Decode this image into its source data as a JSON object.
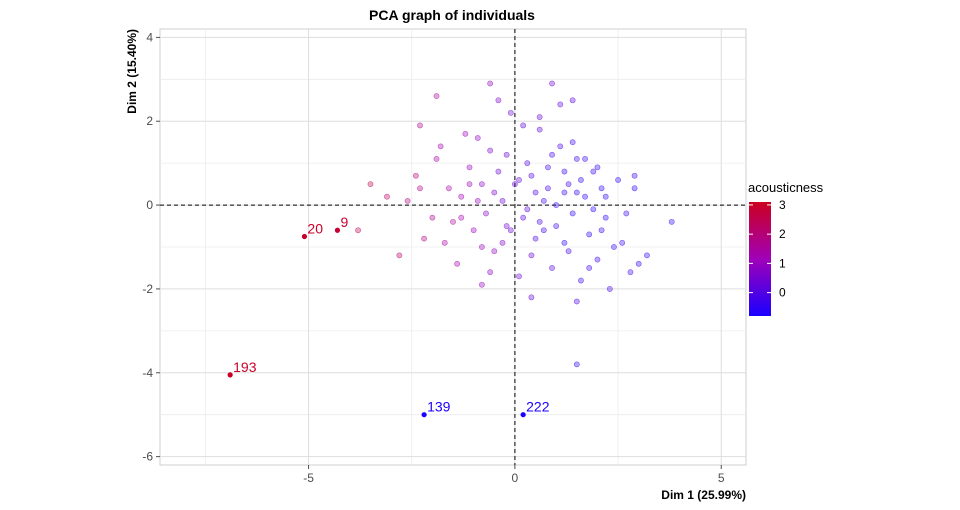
{
  "chart_data": {
    "type": "scatter",
    "title": "PCA graph of individuals",
    "xlabel": "Dim 1 (25.99%)",
    "ylabel": "Dim 2 (15.40%)",
    "xlim": [
      -8.6,
      5.6
    ],
    "ylim": [
      -6.2,
      4.2
    ],
    "x_ticks": [
      -5,
      0,
      5
    ],
    "y_ticks": [
      -6,
      -4,
      -2,
      0,
      2,
      4
    ],
    "grid": true,
    "reference_lines": {
      "x": 0,
      "y": 0,
      "style": "dashed"
    },
    "color_variable": "acousticness",
    "color_scale": {
      "low": "#1a00ff",
      "high": "#cc0020",
      "min": -0.8,
      "max": 3.1,
      "ticks": [
        0,
        1,
        2,
        3
      ]
    },
    "legend_position": "right",
    "labeled_points": [
      {
        "label": "193",
        "x": -6.9,
        "y": -4.05,
        "acousticness": 3.0
      },
      {
        "label": "20",
        "x": -5.1,
        "y": -0.75,
        "acousticness": 3.0
      },
      {
        "label": "9",
        "x": -4.3,
        "y": -0.6,
        "acousticness": 2.9
      },
      {
        "label": "139",
        "x": -2.2,
        "y": -5.0,
        "acousticness": -0.8
      },
      {
        "label": "222",
        "x": 0.2,
        "y": -5.0,
        "acousticness": -0.8
      }
    ],
    "points": [
      [
        -2.4,
        0.7,
        2.0
      ],
      [
        -2.2,
        -0.8,
        1.8
      ],
      [
        -1.9,
        1.1,
        1.5
      ],
      [
        -1.6,
        0.4,
        1.4
      ],
      [
        -1.5,
        -0.4,
        1.6
      ],
      [
        -1.3,
        0.2,
        1.2
      ],
      [
        -1.1,
        0.9,
        1.0
      ],
      [
        -1.0,
        -0.6,
        1.1
      ],
      [
        -0.9,
        1.6,
        0.9
      ],
      [
        -0.8,
        0.5,
        0.8
      ],
      [
        -0.7,
        -0.2,
        0.7
      ],
      [
        -0.6,
        1.3,
        0.6
      ],
      [
        -0.5,
        -1.1,
        0.9
      ],
      [
        -0.4,
        0.8,
        0.4
      ],
      [
        -0.3,
        0.1,
        0.3
      ],
      [
        -0.2,
        -0.5,
        0.5
      ],
      [
        -0.1,
        2.2,
        0.4
      ],
      [
        0.1,
        0.6,
        0.2
      ],
      [
        0.2,
        -0.3,
        0.1
      ],
      [
        0.3,
        1.0,
        0.0
      ],
      [
        0.4,
        -1.2,
        0.3
      ],
      [
        0.5,
        0.3,
        -0.1
      ],
      [
        0.6,
        1.8,
        0.2
      ],
      [
        0.7,
        -0.6,
        -0.2
      ],
      [
        0.8,
        0.9,
        -0.3
      ],
      [
        0.9,
        -1.5,
        0.1
      ],
      [
        1.0,
        0.0,
        -0.4
      ],
      [
        1.1,
        1.4,
        -0.1
      ],
      [
        1.2,
        -0.9,
        -0.5
      ],
      [
        1.3,
        0.5,
        -0.3
      ],
      [
        1.4,
        -0.2,
        -0.6
      ],
      [
        1.5,
        1.1,
        -0.2
      ],
      [
        1.6,
        -1.8,
        -0.4
      ],
      [
        1.7,
        0.2,
        -0.5
      ],
      [
        1.8,
        -0.7,
        -0.6
      ],
      [
        1.9,
        0.8,
        -0.4
      ],
      [
        2.0,
        -1.3,
        -0.3
      ],
      [
        2.1,
        0.4,
        -0.5
      ],
      [
        2.2,
        -0.3,
        -0.6
      ],
      [
        2.3,
        -2.0,
        -0.2
      ],
      [
        2.5,
        0.6,
        -0.5
      ],
      [
        2.6,
        -0.9,
        -0.4
      ],
      [
        2.8,
        -1.6,
        -0.3
      ],
      [
        2.9,
        0.4,
        -0.6
      ],
      [
        3.0,
        -1.4,
        -0.5
      ],
      [
        3.2,
        -1.2,
        -0.4
      ],
      [
        3.8,
        -0.4,
        -0.5
      ],
      [
        2.9,
        0.7,
        -0.3
      ],
      [
        2.7,
        -0.2,
        -0.4
      ],
      [
        -1.8,
        1.4,
        1.3
      ],
      [
        -2.3,
        1.9,
        1.7
      ],
      [
        -2.8,
        -1.2,
        2.2
      ],
      [
        -3.1,
        0.2,
        2.3
      ],
      [
        -3.5,
        0.5,
        2.5
      ],
      [
        -3.8,
        -0.6,
        2.4
      ],
      [
        -2.6,
        0.1,
        1.9
      ],
      [
        -2.0,
        -0.3,
        1.7
      ],
      [
        -1.4,
        -1.4,
        1.3
      ],
      [
        -1.2,
        1.7,
        1.1
      ],
      [
        -0.8,
        -1.9,
        1.0
      ],
      [
        -0.6,
        -1.6,
        0.8
      ],
      [
        -0.3,
        -0.9,
        0.6
      ],
      [
        -0.2,
        1.2,
        0.3
      ],
      [
        0.0,
        0.5,
        0.2
      ],
      [
        0.1,
        -1.7,
        0.4
      ],
      [
        0.2,
        1.9,
        0.1
      ],
      [
        0.4,
        0.7,
        0.0
      ],
      [
        0.5,
        -0.8,
        -0.1
      ],
      [
        0.6,
        2.1,
        0.3
      ],
      [
        0.7,
        0.1,
        -0.2
      ],
      [
        0.9,
        1.2,
        -0.2
      ],
      [
        1.0,
        -0.5,
        -0.3
      ],
      [
        1.1,
        2.4,
        0.2
      ],
      [
        1.2,
        0.8,
        -0.4
      ],
      [
        1.3,
        -1.1,
        -0.2
      ],
      [
        1.4,
        1.5,
        -0.3
      ],
      [
        1.5,
        -2.3,
        -0.1
      ],
      [
        1.6,
        0.6,
        -0.5
      ],
      [
        1.7,
        1.1,
        -0.4
      ],
      [
        1.8,
        -1.5,
        -0.3
      ],
      [
        1.9,
        -0.1,
        -0.6
      ],
      [
        2.0,
        0.9,
        -0.5
      ],
      [
        2.1,
        -0.6,
        -0.4
      ],
      [
        2.2,
        0.2,
        -0.6
      ],
      [
        2.4,
        -1.0,
        -0.5
      ],
      [
        0.9,
        2.9,
        0.4
      ],
      [
        1.4,
        2.5,
        0.1
      ],
      [
        -0.6,
        2.9,
        0.9
      ],
      [
        -0.4,
        2.5,
        0.7
      ],
      [
        -1.9,
        2.6,
        1.6
      ],
      [
        -2.3,
        0.4,
        1.8
      ],
      [
        -1.7,
        -0.9,
        1.5
      ],
      [
        -1.3,
        -0.3,
        1.3
      ],
      [
        -0.9,
        0.1,
        1.0
      ],
      [
        -0.5,
        0.3,
        0.6
      ],
      [
        0.3,
        -0.1,
        0.1
      ],
      [
        0.8,
        0.4,
        -0.2
      ],
      [
        1.2,
        0.3,
        -0.4
      ],
      [
        1.5,
        0.3,
        -0.5
      ],
      [
        0.4,
        -2.2,
        0.2
      ],
      [
        1.5,
        -3.8,
        -0.5
      ],
      [
        -0.8,
        -1.0,
        1.0
      ],
      [
        -1.1,
        0.5,
        1.1
      ],
      [
        -0.1,
        -0.6,
        0.3
      ],
      [
        0.6,
        -0.4,
        -0.1
      ]
    ]
  }
}
